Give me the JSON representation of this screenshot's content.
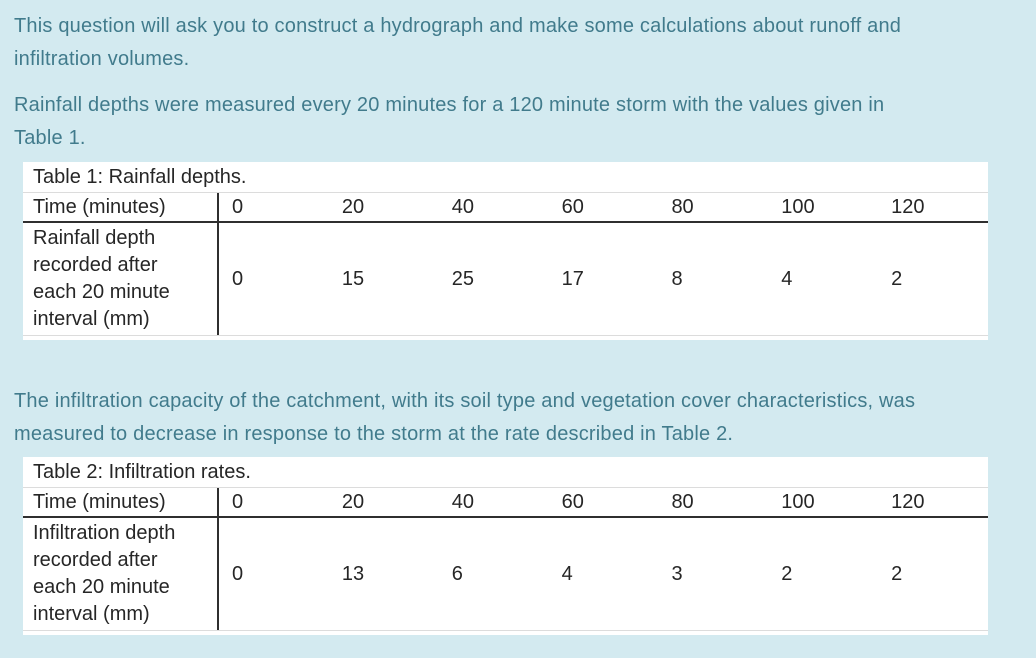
{
  "page": {
    "background_color": "#d3eaf0",
    "body_text_color": "#417b8c",
    "table_text_color": "#262626",
    "table_background_color": "#ffffff"
  },
  "intro": {
    "paragraph1": "This question will ask you to construct a hydrograph and make some calculations about runoff and\ninfiltration volumes.",
    "paragraph2": "Rainfall depths were measured every 20 minutes for a 120 minute storm with the values given in\nTable 1.",
    "paragraph3": "The infiltration capacity of the catchment, with its soil type and vegetation cover characteristics, was\nmeasured to decrease in response to the storm at the rate described in Table 2."
  },
  "table1": {
    "caption": "Table 1: Rainfall depths.",
    "row1_header": "Time (minutes)",
    "row2_header": "Rainfall depth\nrecorded after\neach 20 minute\ninterval (mm)",
    "times": [
      "0",
      "20",
      "40",
      "60",
      "80",
      "100",
      "120"
    ],
    "values": [
      "0",
      "15",
      "25",
      "17",
      "8",
      "4",
      "2"
    ]
  },
  "table2": {
    "caption": "Table 2: Infiltration rates.",
    "row1_header": "Time (minutes)",
    "row2_header": "Infiltration depth\nrecorded after\neach 20 minute\ninterval (mm)",
    "times": [
      "0",
      "20",
      "40",
      "60",
      "80",
      "100",
      "120"
    ],
    "values": [
      "0",
      "13",
      "6",
      "4",
      "3",
      "2",
      "2"
    ]
  }
}
